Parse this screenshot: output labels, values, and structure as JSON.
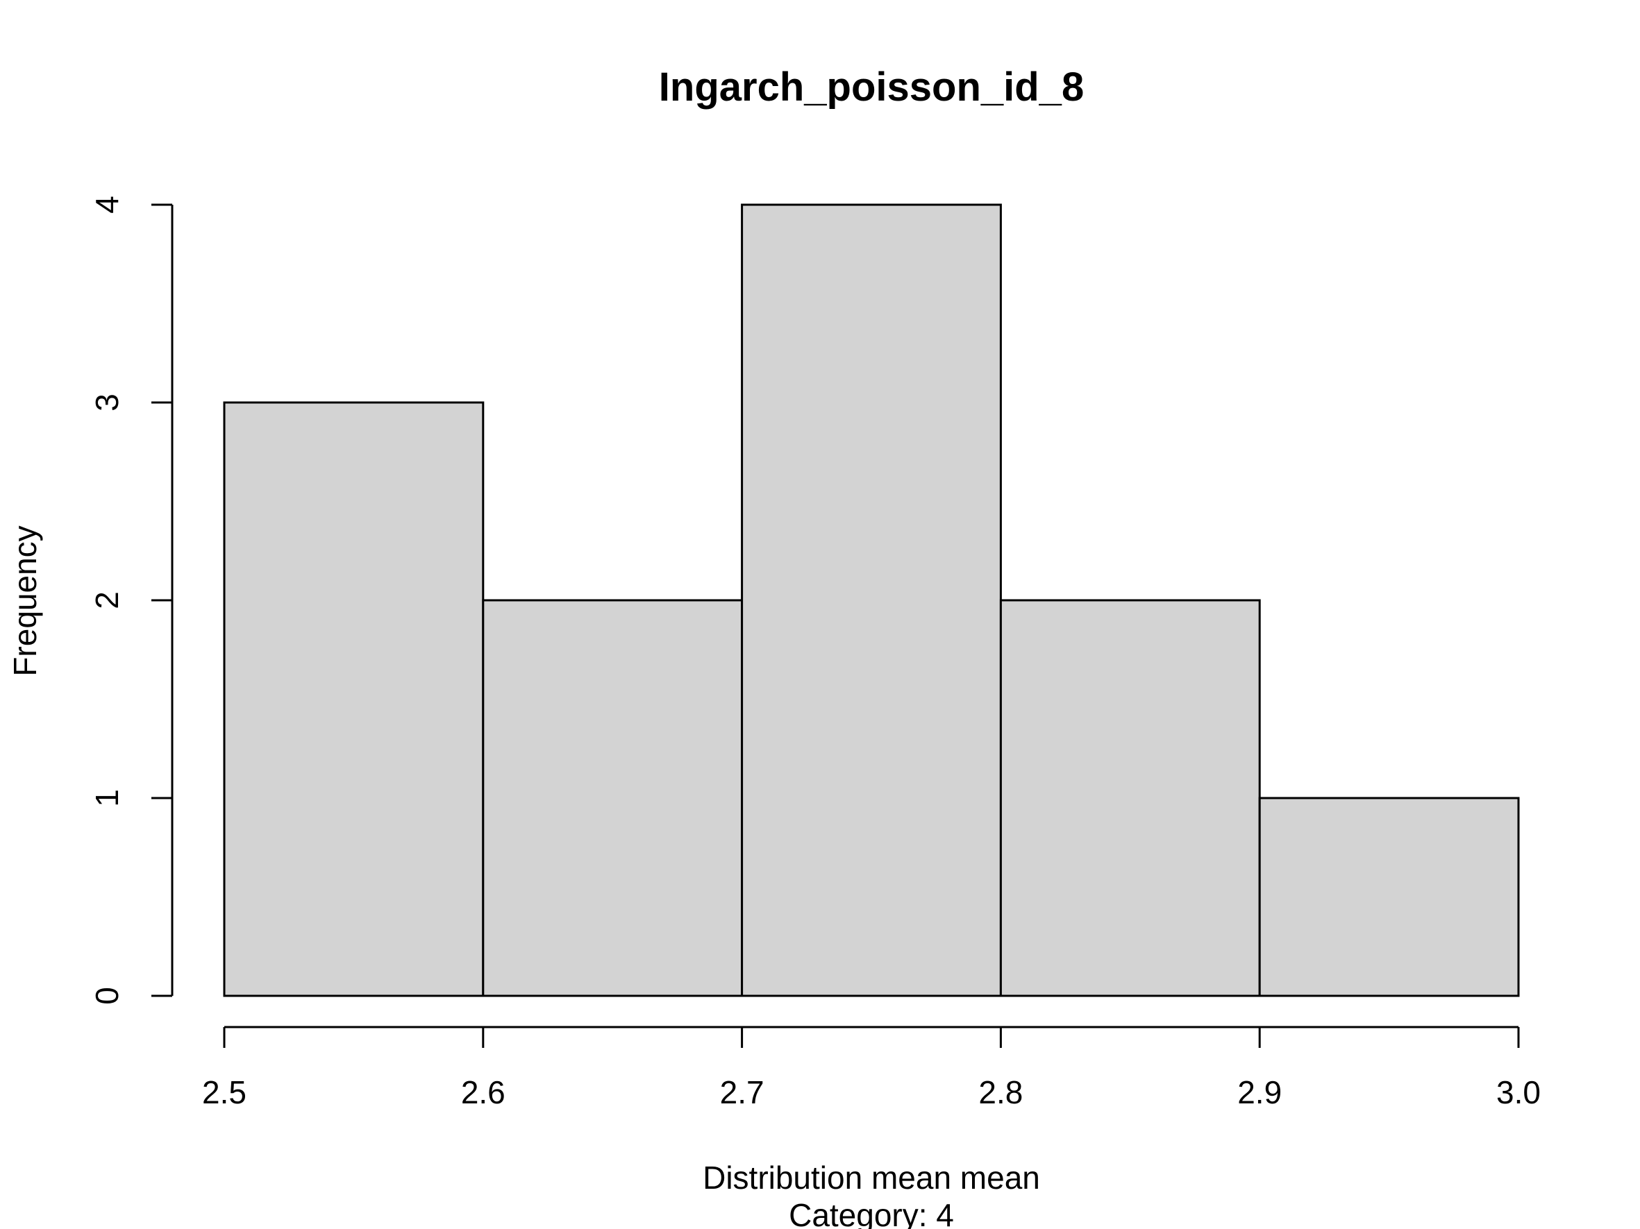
{
  "chart_data": {
    "type": "bar",
    "title": "Ingarch_poisson_id_8",
    "xlabel": "Distribution mean mean",
    "subtitle": "Category: 4",
    "ylabel": "Frequency",
    "bins": [
      {
        "from": 2.5,
        "to": 2.6,
        "value": 3
      },
      {
        "from": 2.6,
        "to": 2.7,
        "value": 2
      },
      {
        "from": 2.7,
        "to": 2.8,
        "value": 4
      },
      {
        "from": 2.8,
        "to": 2.9,
        "value": 2
      },
      {
        "from": 2.9,
        "to": 3.0,
        "value": 1
      }
    ],
    "xticks": [
      "2.5",
      "2.6",
      "2.7",
      "2.8",
      "2.9",
      "3.0"
    ],
    "xtick_values": [
      2.5,
      2.6,
      2.7,
      2.8,
      2.9,
      3.0
    ],
    "yticks": [
      "0",
      "1",
      "2",
      "3",
      "4"
    ],
    "ytick_values": [
      0,
      1,
      2,
      3,
      4
    ],
    "xlim": [
      2.5,
      3.0
    ],
    "ylim": [
      0,
      4
    ],
    "grid": false,
    "colors": {
      "bar_fill": "#d3d3d3",
      "bar_stroke": "#000000"
    }
  }
}
